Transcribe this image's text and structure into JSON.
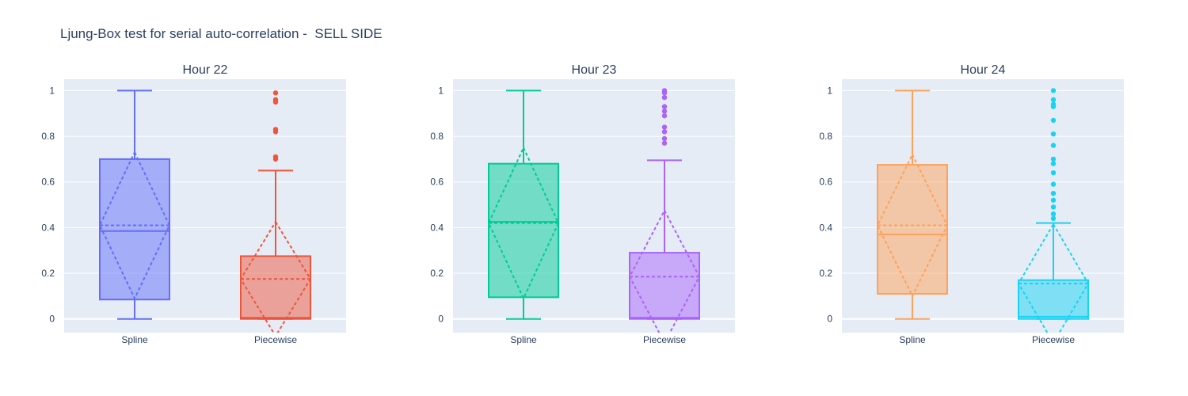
{
  "chart_data": {
    "type": "box",
    "title": "Ljung-Box test for serial auto-correlation -  SELL SIDE",
    "ylim": [
      -0.06,
      1.05
    ],
    "yticks": [
      0,
      0.2,
      0.4,
      0.6,
      0.8,
      1
    ],
    "ytick_labels": [
      "0",
      "0.2",
      "0.4",
      "0.6",
      "0.8",
      "1"
    ],
    "categories": [
      "Spline",
      "Piecewise"
    ],
    "grid": true,
    "boxmean": "sd",
    "panels": [
      {
        "title": "Hour 22",
        "boxes": [
          {
            "category": "Spline",
            "color": "#636efa",
            "lowerfence": 0.0,
            "q1": 0.085,
            "median": 0.385,
            "q3": 0.7,
            "upperfence": 1.0,
            "mean": 0.41,
            "sd": 0.32,
            "outliers": []
          },
          {
            "category": "Piecewise",
            "color": "#ef553b",
            "lowerfence": 0.0,
            "q1": 0.0,
            "median": 0.005,
            "q3": 0.275,
            "upperfence": 0.65,
            "mean": 0.175,
            "sd": 0.25,
            "outliers": [
              0.7,
              0.71,
              0.82,
              0.83,
              0.95,
              0.96,
              0.99
            ]
          }
        ]
      },
      {
        "title": "Hour 23",
        "boxes": [
          {
            "category": "Spline",
            "color": "#00cc96",
            "lowerfence": 0.0,
            "q1": 0.095,
            "median": 0.425,
            "q3": 0.68,
            "upperfence": 1.0,
            "mean": 0.42,
            "sd": 0.33,
            "outliers": []
          },
          {
            "category": "Piecewise",
            "color": "#ab63fa",
            "lowerfence": 0.0,
            "q1": 0.0,
            "median": 0.005,
            "q3": 0.29,
            "upperfence": 0.695,
            "mean": 0.185,
            "sd": 0.29,
            "outliers": [
              0.77,
              0.79,
              0.82,
              0.84,
              0.89,
              0.91,
              0.93,
              0.97,
              0.99,
              1.0
            ]
          }
        ]
      },
      {
        "title": "Hour 24",
        "boxes": [
          {
            "category": "Spline",
            "color": "#ffa15a",
            "lowerfence": 0.0,
            "q1": 0.11,
            "median": 0.37,
            "q3": 0.675,
            "upperfence": 1.0,
            "mean": 0.41,
            "sd": 0.31,
            "outliers": []
          },
          {
            "category": "Piecewise",
            "color": "#19d3f3",
            "lowerfence": 0.0,
            "q1": 0.0,
            "median": 0.01,
            "q3": 0.17,
            "upperfence": 0.42,
            "mean": 0.155,
            "sd": 0.26,
            "outliers": [
              0.44,
              0.46,
              0.49,
              0.52,
              0.55,
              0.59,
              0.64,
              0.68,
              0.7,
              0.76,
              0.81,
              0.87,
              0.93,
              0.94,
              0.96,
              1.0
            ]
          }
        ]
      }
    ]
  }
}
